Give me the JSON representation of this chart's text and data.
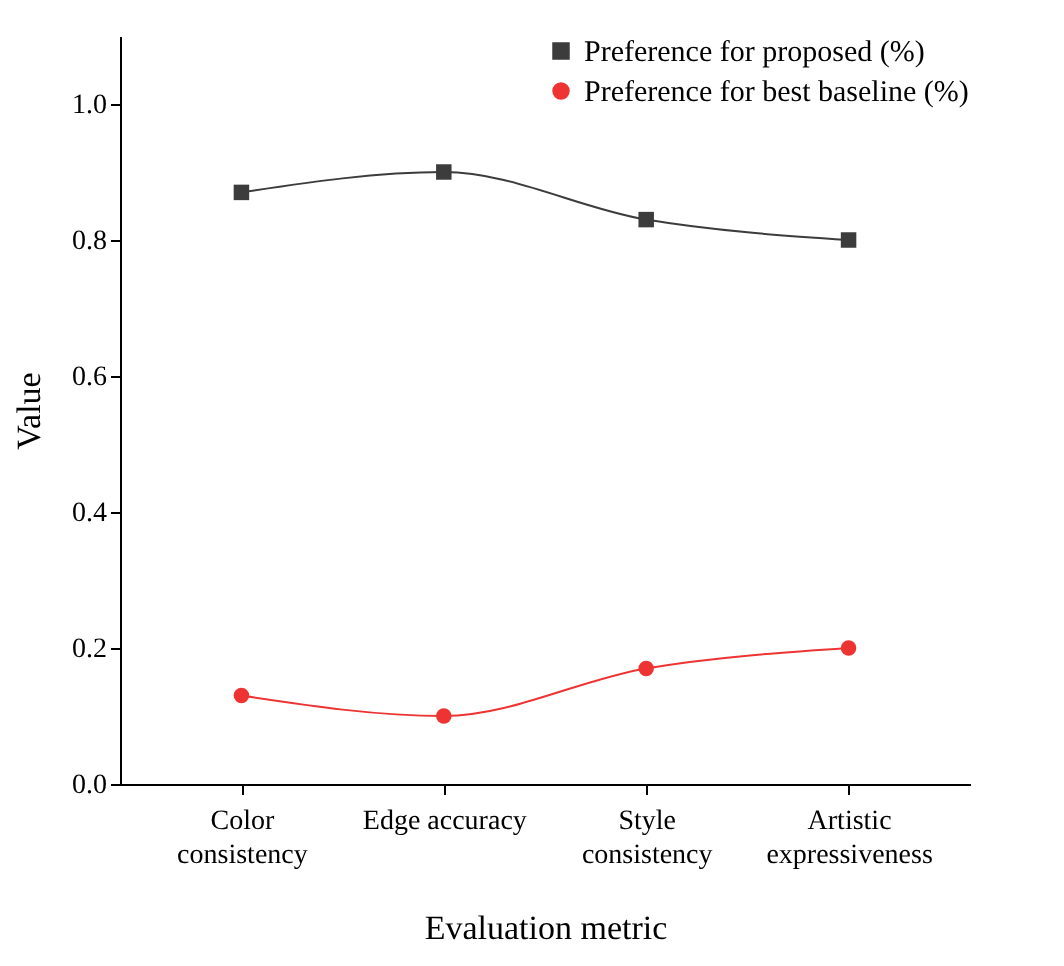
{
  "chart_data": {
    "type": "line",
    "xlabel": "Evaluation metric",
    "ylabel": "Value",
    "categories": [
      "Color\nconsistency",
      "Edge accuracy",
      "Style\nconsistency",
      "Artistic\nexpressiveness"
    ],
    "series": [
      {
        "name": "Preference for proposed (%)",
        "color": "#3c3c3c",
        "marker": "square",
        "values": [
          0.87,
          0.9,
          0.83,
          0.8
        ]
      },
      {
        "name": "Preference for best baseline (%)",
        "color": "#ee3333",
        "marker": "circle",
        "values": [
          0.13,
          0.1,
          0.17,
          0.2
        ]
      }
    ],
    "ylim": [
      0,
      1.1
    ],
    "yticks": [
      {
        "value": 0,
        "label": "0.0"
      },
      {
        "value": 0.2,
        "label": "0.2"
      },
      {
        "value": 0.4,
        "label": "0.4"
      },
      {
        "value": 0.6,
        "label": "0.6"
      },
      {
        "value": 0.8,
        "label": "0.8"
      },
      {
        "value": 1.0,
        "label": "1.0"
      }
    ],
    "grid": false,
    "legend": "top right",
    "line_style": "solid"
  }
}
